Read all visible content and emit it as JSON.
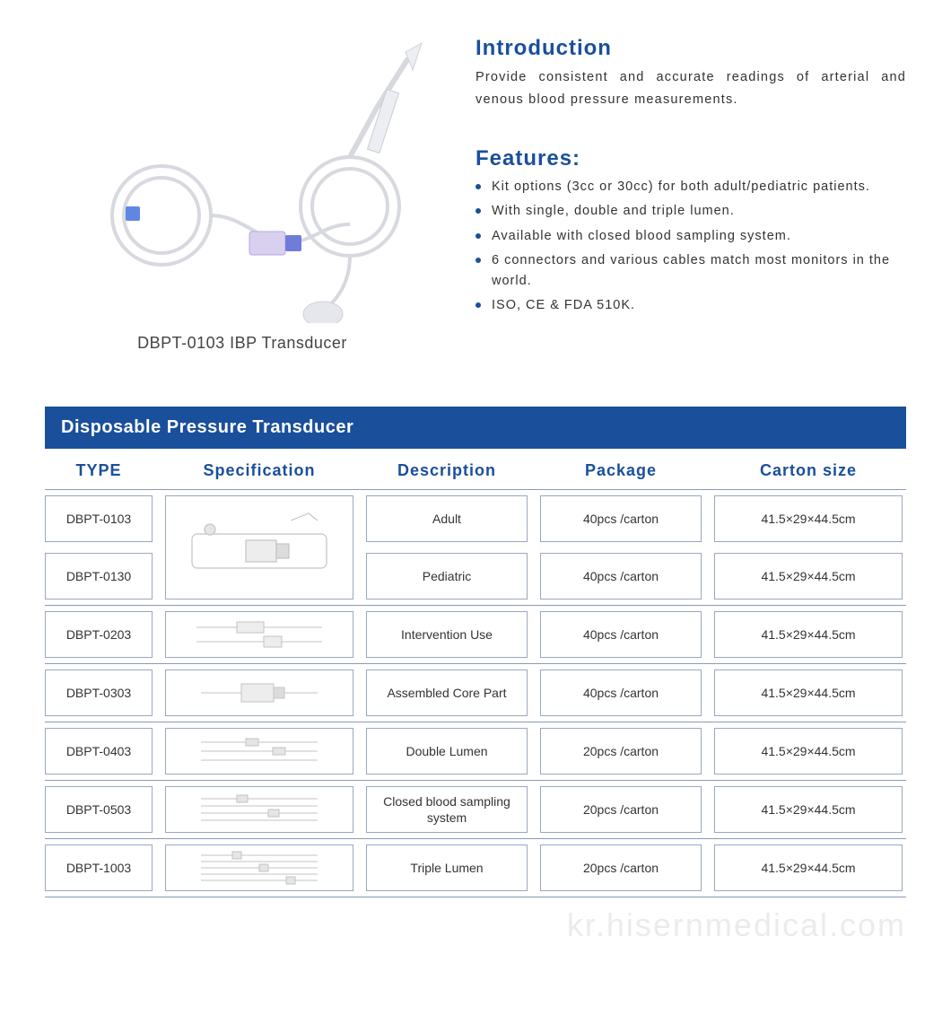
{
  "colors": {
    "brand_blue": "#1a4f9c",
    "title_blue": "#1a4f9c",
    "bullet_blue": "#1a4f9c",
    "header_bg": "#1a4f9c",
    "border_gray": "#9aa7c2",
    "row_divider": "#8a99b8",
    "text_body": "#333333",
    "watermark": "rgba(0,0,0,0.08)"
  },
  "product": {
    "caption": "DBPT-0103 IBP Transducer"
  },
  "intro": {
    "title": "Introduction",
    "body": "Provide consistent and accurate readings of arterial and venous blood pressure measurements."
  },
  "features": {
    "title": "Features:",
    "items": [
      "Kit options (3cc or 30cc) for both adult/pediatric patients.",
      "With single, double and triple lumen.",
      "Available with closed blood sampling system.",
      "6 connectors and various cables match most monitors in the world.",
      "ISO, CE & FDA 510K."
    ]
  },
  "table": {
    "title": "Disposable Pressure Transducer",
    "columns": [
      "TYPE",
      "Specification",
      "Description",
      "Package",
      "Carton  size"
    ],
    "grouped_first": {
      "types": [
        "DBPT-0103",
        "DBPT-0130"
      ],
      "descriptions": [
        "Adult",
        "Pediatric"
      ],
      "packages": [
        "40pcs /carton",
        "40pcs /carton"
      ],
      "cartons": [
        "41.5×29×44.5cm",
        "41.5×29×44.5cm"
      ]
    },
    "rows": [
      {
        "type": "DBPT-0203",
        "description": "Intervention Use",
        "package": "40pcs /carton",
        "carton": "41.5×29×44.5cm"
      },
      {
        "type": "DBPT-0303",
        "description": "Assembled Core Part",
        "package": "40pcs /carton",
        "carton": "41.5×29×44.5cm"
      },
      {
        "type": "DBPT-0403",
        "description": "Double Lumen",
        "package": "20pcs /carton",
        "carton": "41.5×29×44.5cm"
      },
      {
        "type": "DBPT-0503",
        "description": "Closed blood sampling system",
        "package": "20pcs /carton",
        "carton": "41.5×29×44.5cm"
      },
      {
        "type": "DBPT-1003",
        "description": "Triple Lumen",
        "package": "20pcs /carton",
        "carton": "41.5×29×44.5cm"
      }
    ]
  },
  "watermark": "kr.hisernmedical.com"
}
